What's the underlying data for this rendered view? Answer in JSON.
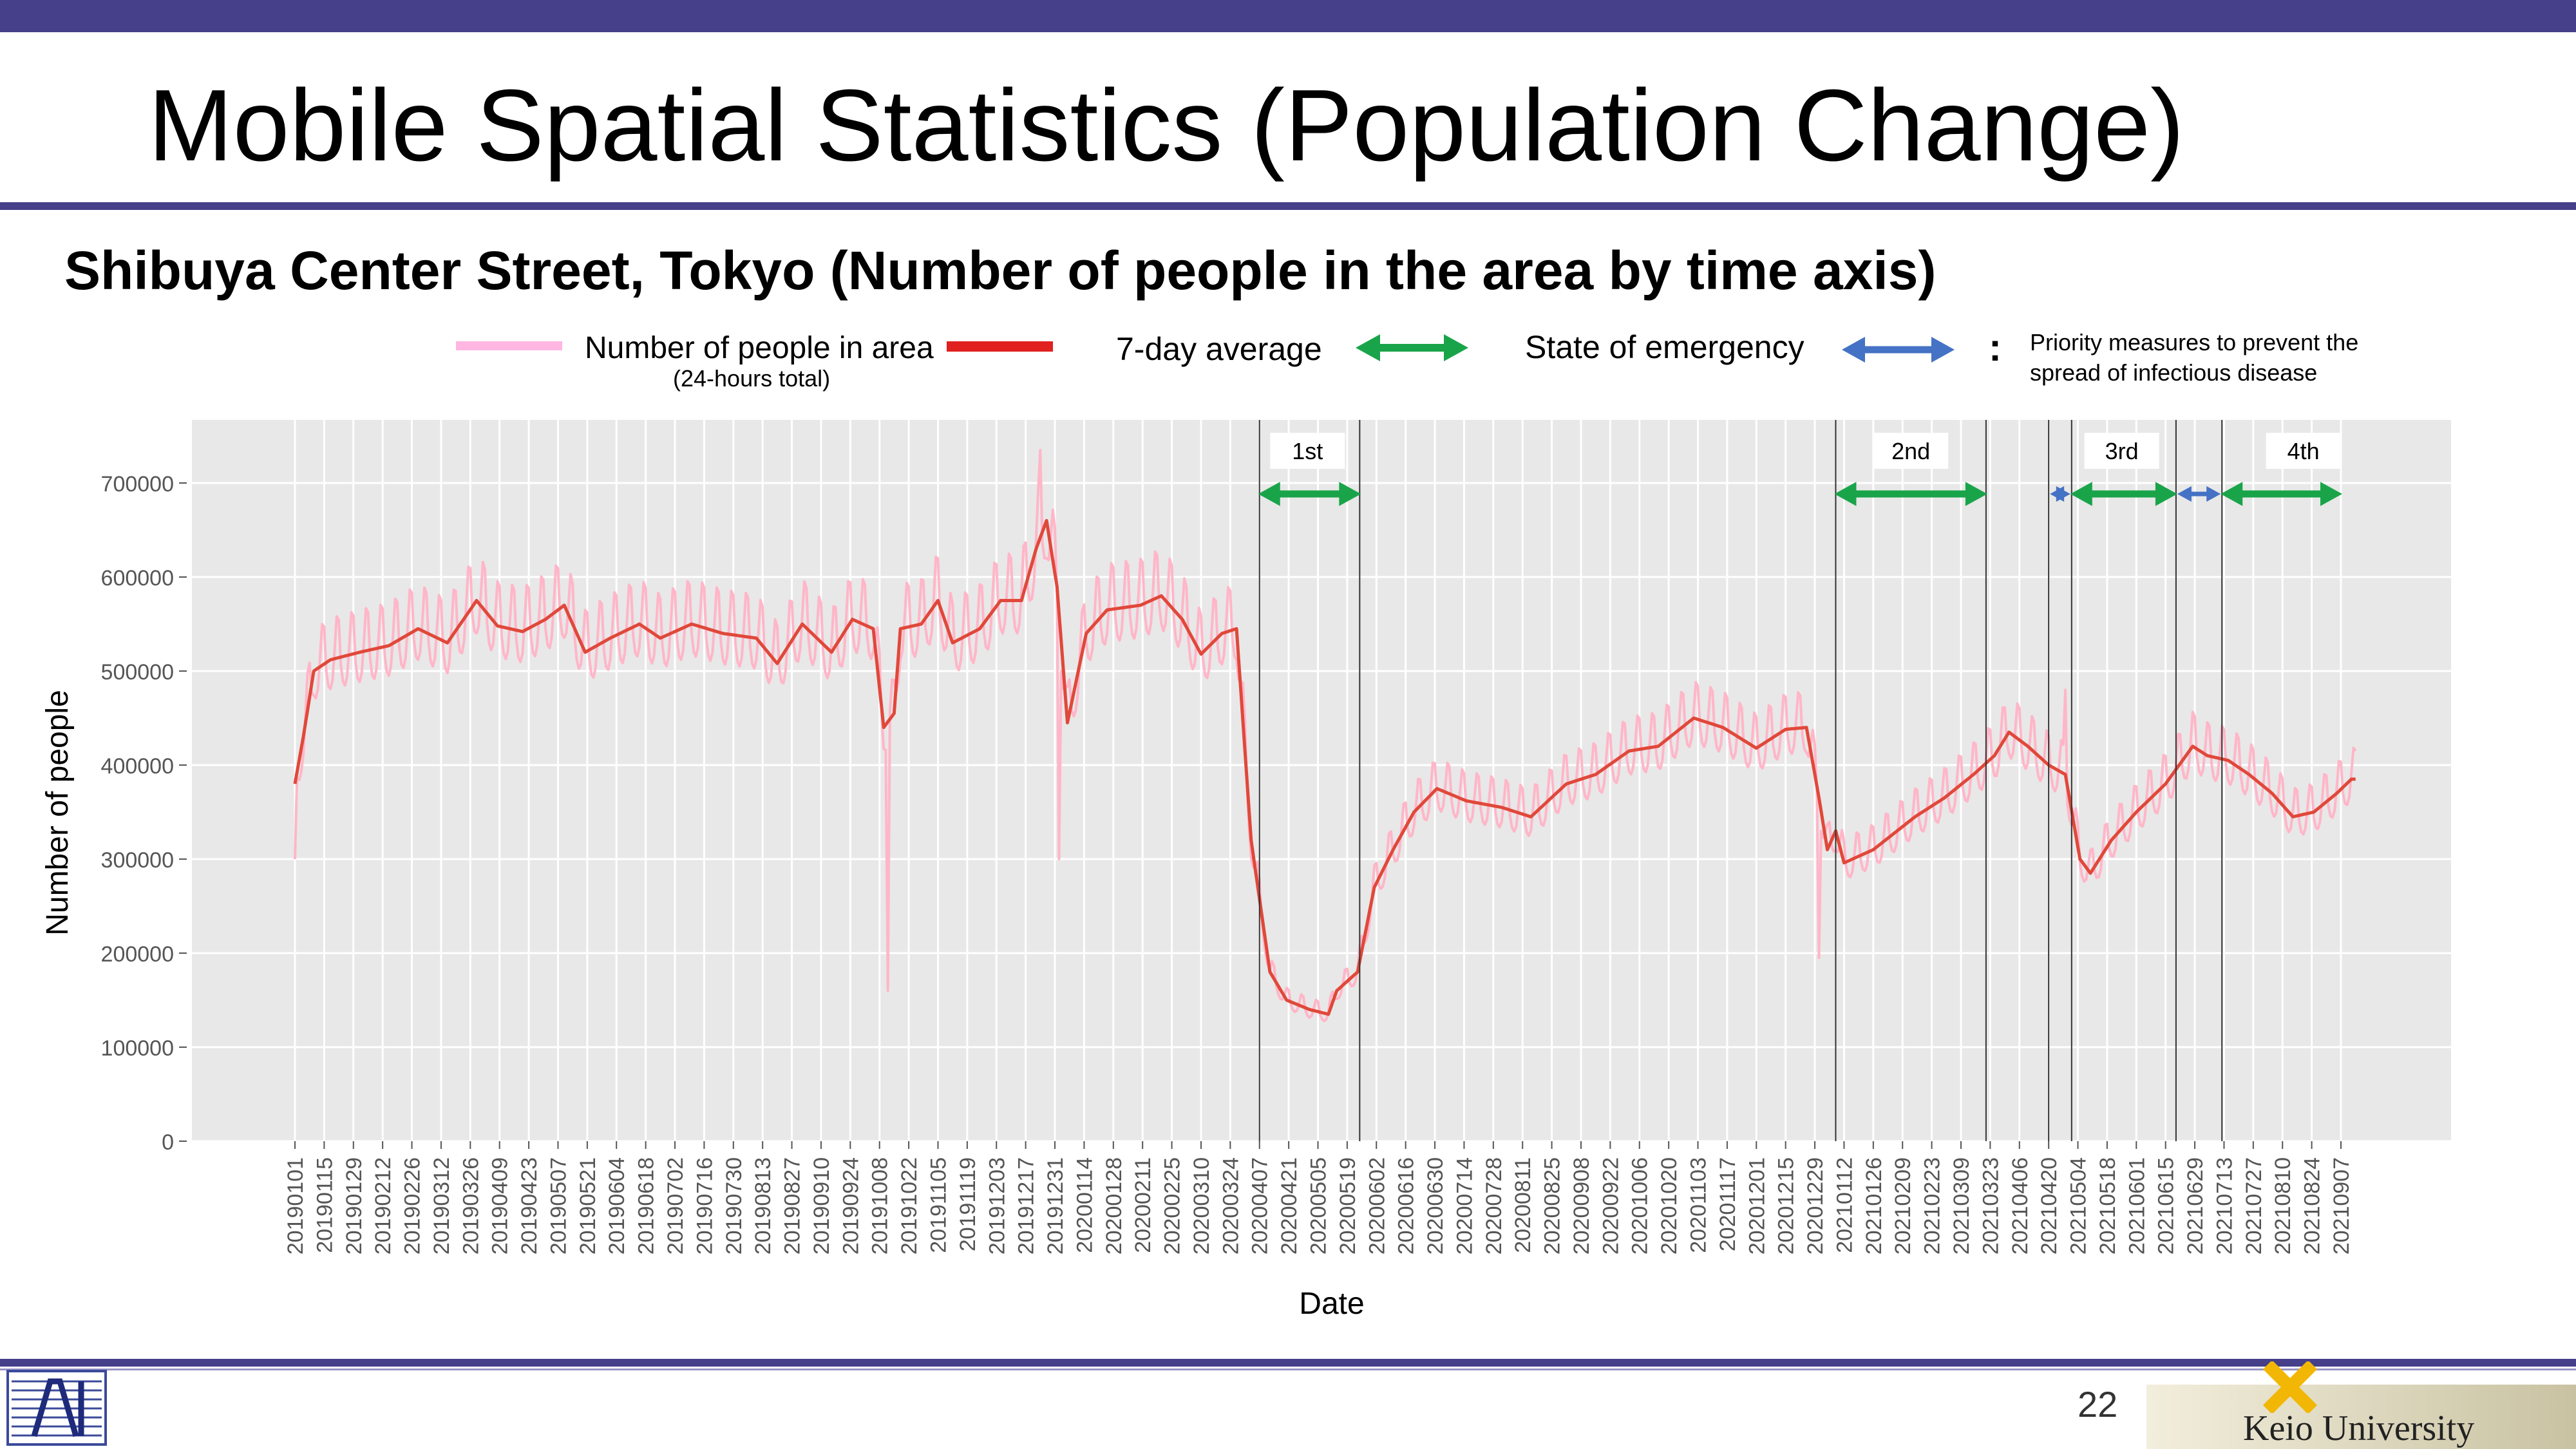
{
  "slide": {
    "title": "Mobile Spatial Statistics (Population Change)",
    "subtitle": "Shibuya Center Street, Tokyo (Number of people in the area by time axis)",
    "page_number": "22",
    "university": "Keio University"
  },
  "legend": {
    "series_daily": "Number of people in area",
    "series_daily_note": "(24-hours total)",
    "series_avg": "7-day average",
    "emergency": "State of emergency",
    "priority": "Priority measures to prevent the spread of infectious disease",
    "colon": ":",
    "colors": {
      "daily": "#ffb6c8",
      "avg": "#e0483a",
      "emergency": "#1aa44a",
      "priority": "#4472c4"
    }
  },
  "chart_data": {
    "type": "line",
    "xlabel": "Date",
    "ylabel": "Number of people",
    "ylim": [
      0,
      760000
    ],
    "yticks": [
      0,
      100000,
      200000,
      300000,
      400000,
      500000,
      600000,
      700000
    ],
    "grid": true,
    "x_start": "2019-01-01",
    "x_end": "2021-09-14",
    "x_ticks": [
      "20190101",
      "20190115",
      "20190129",
      "20190212",
      "20190226",
      "20190312",
      "20190326",
      "20190409",
      "20190423",
      "20190507",
      "20190521",
      "20190604",
      "20190618",
      "20190702",
      "20190716",
      "20190730",
      "20190813",
      "20190827",
      "20190910",
      "20190924",
      "20191008",
      "20191022",
      "20191105",
      "20191119",
      "20191203",
      "20191217",
      "20191231",
      "20200114",
      "20200128",
      "20200211",
      "20200225",
      "20200310",
      "20200324",
      "20200407",
      "20200421",
      "20200505",
      "20200519",
      "20200602",
      "20200616",
      "20200630",
      "20200714",
      "20200728",
      "20200811",
      "20200825",
      "20200908",
      "20200922",
      "20201006",
      "20201020",
      "20201103",
      "20201117",
      "20201201",
      "20201215",
      "20201229",
      "20210112",
      "20210126",
      "20210209",
      "20210223",
      "20210309",
      "20210323",
      "20210406",
      "20210420",
      "20210504",
      "20210518",
      "20210601",
      "20210615",
      "20210629",
      "20210713",
      "20210727",
      "20210810",
      "20210824",
      "20210907"
    ],
    "series": [
      {
        "name": "7-day average",
        "color": "#e0483a",
        "points": [
          [
            "2019-01-01",
            380000
          ],
          [
            "2019-01-05",
            430000
          ],
          [
            "2019-01-10",
            500000
          ],
          [
            "2019-01-18",
            512000
          ],
          [
            "2019-02-01",
            520000
          ],
          [
            "2019-02-15",
            527000
          ],
          [
            "2019-03-01",
            545000
          ],
          [
            "2019-03-15",
            530000
          ],
          [
            "2019-03-29",
            575000
          ],
          [
            "2019-04-08",
            548000
          ],
          [
            "2019-04-20",
            542000
          ],
          [
            "2019-05-01",
            555000
          ],
          [
            "2019-05-10",
            570000
          ],
          [
            "2019-05-20",
            520000
          ],
          [
            "2019-06-01",
            535000
          ],
          [
            "2019-06-15",
            550000
          ],
          [
            "2019-06-25",
            535000
          ],
          [
            "2019-07-10",
            550000
          ],
          [
            "2019-07-25",
            540000
          ],
          [
            "2019-08-10",
            535000
          ],
          [
            "2019-08-20",
            508000
          ],
          [
            "2019-09-01",
            550000
          ],
          [
            "2019-09-15",
            520000
          ],
          [
            "2019-09-25",
            555000
          ],
          [
            "2019-10-05",
            545000
          ],
          [
            "2019-10-10",
            440000
          ],
          [
            "2019-10-15",
            455000
          ],
          [
            "2019-10-18",
            545000
          ],
          [
            "2019-10-28",
            550000
          ],
          [
            "2019-11-05",
            575000
          ],
          [
            "2019-11-12",
            530000
          ],
          [
            "2019-11-25",
            545000
          ],
          [
            "2019-12-05",
            575000
          ],
          [
            "2019-12-15",
            575000
          ],
          [
            "2019-12-22",
            630000
          ],
          [
            "2019-12-27",
            660000
          ],
          [
            "2020-01-01",
            590000
          ],
          [
            "2020-01-06",
            445000
          ],
          [
            "2020-01-15",
            540000
          ],
          [
            "2020-01-25",
            565000
          ],
          [
            "2020-02-10",
            570000
          ],
          [
            "2020-02-20",
            580000
          ],
          [
            "2020-03-01",
            555000
          ],
          [
            "2020-03-10",
            518000
          ],
          [
            "2020-03-20",
            540000
          ],
          [
            "2020-03-27",
            545000
          ],
          [
            "2020-04-03",
            320000
          ],
          [
            "2020-04-12",
            180000
          ],
          [
            "2020-04-20",
            150000
          ],
          [
            "2020-05-01",
            140000
          ],
          [
            "2020-05-10",
            135000
          ],
          [
            "2020-05-14",
            160000
          ],
          [
            "2020-05-24",
            180000
          ],
          [
            "2020-06-01",
            270000
          ],
          [
            "2020-06-10",
            310000
          ],
          [
            "2020-06-20",
            350000
          ],
          [
            "2020-07-01",
            375000
          ],
          [
            "2020-07-15",
            362000
          ],
          [
            "2020-08-01",
            355000
          ],
          [
            "2020-08-15",
            345000
          ],
          [
            "2020-09-01",
            380000
          ],
          [
            "2020-09-15",
            390000
          ],
          [
            "2020-10-01",
            415000
          ],
          [
            "2020-10-15",
            420000
          ],
          [
            "2020-11-01",
            450000
          ],
          [
            "2020-11-15",
            440000
          ],
          [
            "2020-12-01",
            418000
          ],
          [
            "2020-12-15",
            438000
          ],
          [
            "2020-12-25",
            440000
          ],
          [
            "2020-12-31",
            365000
          ],
          [
            "2021-01-04",
            310000
          ],
          [
            "2021-01-08",
            330000
          ],
          [
            "2021-01-12",
            296000
          ],
          [
            "2021-01-26",
            310000
          ],
          [
            "2021-02-15",
            345000
          ],
          [
            "2021-03-01",
            365000
          ],
          [
            "2021-03-15",
            390000
          ],
          [
            "2021-03-25",
            410000
          ],
          [
            "2021-04-01",
            435000
          ],
          [
            "2021-04-10",
            420000
          ],
          [
            "2021-04-20",
            400000
          ],
          [
            "2021-04-28",
            390000
          ],
          [
            "2021-05-05",
            300000
          ],
          [
            "2021-05-10",
            285000
          ],
          [
            "2021-05-20",
            320000
          ],
          [
            "2021-06-01",
            350000
          ],
          [
            "2021-06-15",
            380000
          ],
          [
            "2021-06-28",
            420000
          ],
          [
            "2021-07-05",
            410000
          ],
          [
            "2021-07-15",
            405000
          ],
          [
            "2021-07-25",
            390000
          ],
          [
            "2021-08-05",
            370000
          ],
          [
            "2021-08-15",
            345000
          ],
          [
            "2021-08-25",
            350000
          ],
          [
            "2021-09-05",
            370000
          ],
          [
            "2021-09-12",
            385000
          ]
        ]
      },
      {
        "name": "Number of people in area",
        "color": "#ffb6c8",
        "weekly_amplitude": 45000,
        "spikes": [
          [
            "2019-01-01",
            300000
          ],
          [
            "2019-10-12",
            160000
          ],
          [
            "2019-12-24",
            735000
          ],
          [
            "2020-01-02",
            300000
          ],
          [
            "2020-12-31",
            195000
          ],
          [
            "2021-04-28",
            480000
          ]
        ]
      }
    ],
    "events": {
      "boundaries": [
        "2020-04-07",
        "2020-05-25",
        "2021-01-08",
        "2021-03-21",
        "2021-04-20",
        "2021-05-01",
        "2021-06-20",
        "2021-07-12"
      ],
      "labels": [
        {
          "text": "1st",
          "center": "2020-04-30"
        },
        {
          "text": "2nd",
          "center": "2021-02-13"
        },
        {
          "text": "3rd",
          "center": "2021-05-25"
        },
        {
          "text": "4th",
          "center": "2021-08-20"
        }
      ],
      "emergency": [
        {
          "start": "2020-04-07",
          "end": "2020-05-25"
        },
        {
          "start": "2021-01-08",
          "end": "2021-03-21"
        },
        {
          "start": "2021-05-01",
          "end": "2021-06-20"
        },
        {
          "start": "2021-07-12",
          "end": "2021-09-07"
        }
      ],
      "priority": [
        {
          "start": "2021-04-20",
          "end": "2021-05-01"
        },
        {
          "start": "2021-06-20",
          "end": "2021-07-12"
        }
      ]
    }
  }
}
